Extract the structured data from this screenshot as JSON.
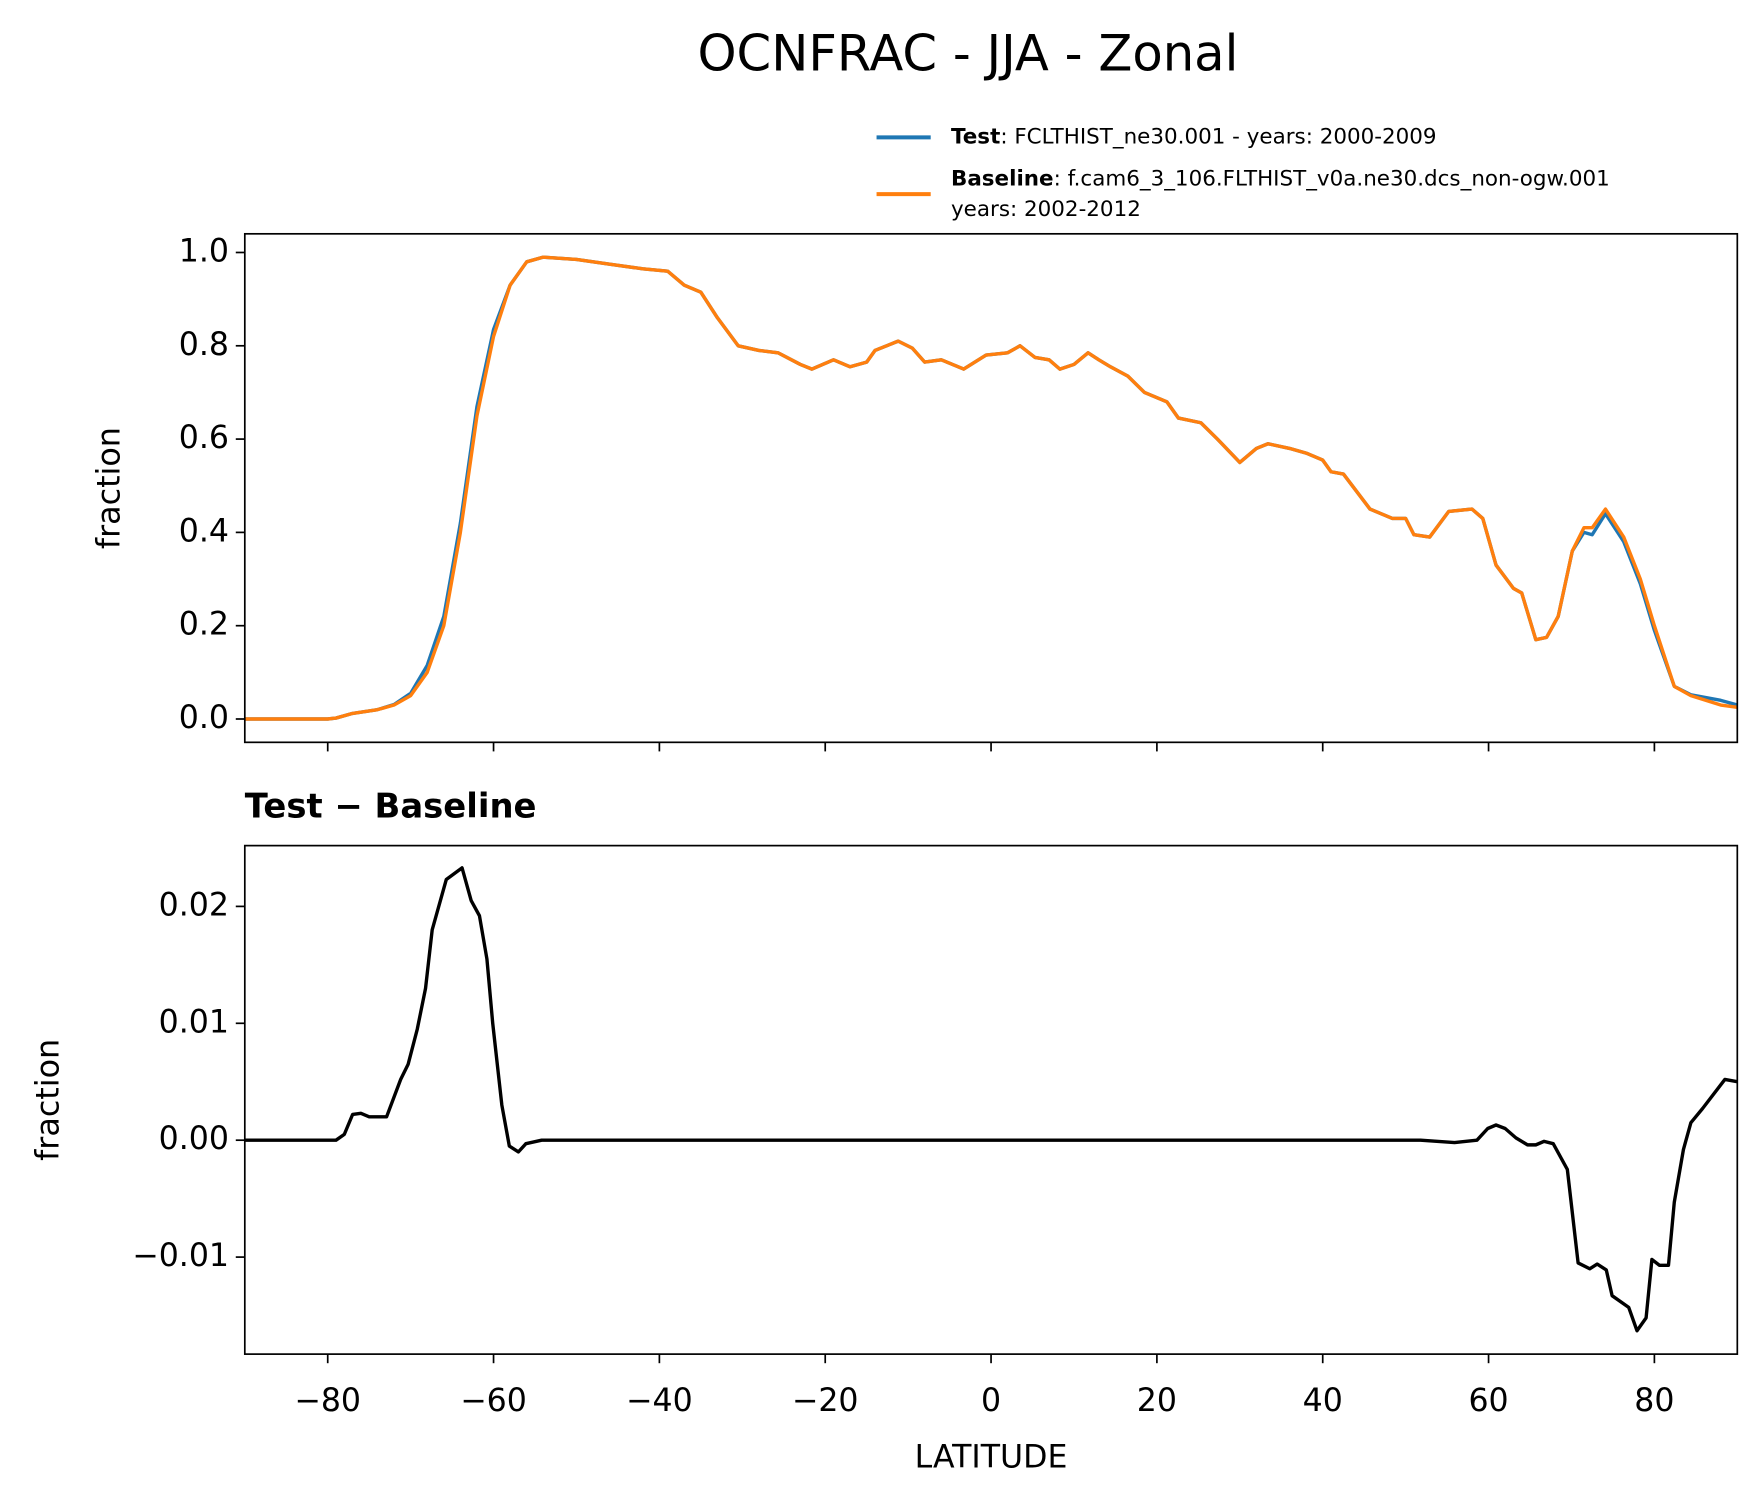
{
  "chart_data": [
    {
      "type": "line",
      "title": "OCNFRAC - JJA - Zonal",
      "ylabel": "fraction",
      "x": [
        -90,
        -80,
        -79,
        -77,
        -74,
        -72,
        -70,
        -68,
        -66,
        -64,
        -62,
        -60,
        -58,
        -56,
        -54,
        -50,
        -46,
        -42,
        -39,
        -37,
        -35,
        -33,
        -30.5,
        -28,
        -25.7,
        -23,
        -21.6,
        -19,
        -17,
        -15,
        -14,
        -11.2,
        -9.5,
        -8,
        -6,
        -3.3,
        -0.6,
        2,
        3.5,
        5.3,
        7,
        8.3,
        10,
        11.7,
        13,
        14.4,
        16.5,
        18.5,
        21.2,
        22.6,
        25.3,
        27.3,
        30,
        32,
        33.4,
        36,
        38,
        40,
        41,
        42.5,
        45.7,
        48.4,
        50,
        51,
        52.9,
        55.2,
        58,
        59.3,
        60.9,
        63,
        64,
        65.7,
        67,
        68.4,
        70.1,
        71.5,
        72.5,
        74.1,
        76.3,
        78.3,
        80,
        82.4,
        84.4,
        88,
        90
      ],
      "series": [
        {
          "name": "Test",
          "description": ": FCLTHIST_ne30.001 - years: 2000-2009",
          "color": "#1f77b4",
          "values": [
            0,
            0,
            0.002,
            0.012,
            0.02,
            0.031,
            0.055,
            0.115,
            0.22,
            0.42,
            0.67,
            0.835,
            0.93,
            0.98,
            0.99,
            0.985,
            0.975,
            0.965,
            0.96,
            0.93,
            0.915,
            0.86,
            0.8,
            0.79,
            0.785,
            0.76,
            0.75,
            0.77,
            0.755,
            0.765,
            0.79,
            0.81,
            0.795,
            0.765,
            0.77,
            0.75,
            0.78,
            0.785,
            0.8,
            0.775,
            0.77,
            0.75,
            0.76,
            0.785,
            0.77,
            0.755,
            0.735,
            0.7,
            0.68,
            0.645,
            0.635,
            0.6,
            0.55,
            0.58,
            0.59,
            0.58,
            0.57,
            0.555,
            0.53,
            0.525,
            0.45,
            0.43,
            0.43,
            0.395,
            0.39,
            0.445,
            0.45,
            0.43,
            0.33,
            0.28,
            0.27,
            0.17,
            0.175,
            0.22,
            0.36,
            0.4,
            0.395,
            0.44,
            0.38,
            0.29,
            0.19,
            0.07,
            0.052,
            0.04,
            0.03
          ]
        },
        {
          "name": "Baseline",
          "description": ": f.cam6_3_106.FLTHIST_v0a.ne30.dcs_non-ogw.001",
          "description_2": "years: 2002-2012",
          "color": "#ff7f0e",
          "values": [
            0,
            0,
            0.002,
            0.012,
            0.02,
            0.03,
            0.05,
            0.1,
            0.2,
            0.4,
            0.65,
            0.82,
            0.93,
            0.98,
            0.99,
            0.985,
            0.975,
            0.965,
            0.96,
            0.93,
            0.915,
            0.86,
            0.8,
            0.79,
            0.785,
            0.76,
            0.75,
            0.77,
            0.755,
            0.765,
            0.79,
            0.81,
            0.795,
            0.765,
            0.77,
            0.75,
            0.78,
            0.785,
            0.8,
            0.775,
            0.77,
            0.75,
            0.76,
            0.785,
            0.77,
            0.755,
            0.735,
            0.7,
            0.68,
            0.645,
            0.635,
            0.6,
            0.55,
            0.58,
            0.59,
            0.58,
            0.57,
            0.555,
            0.53,
            0.525,
            0.45,
            0.43,
            0.43,
            0.395,
            0.39,
            0.445,
            0.45,
            0.43,
            0.33,
            0.28,
            0.27,
            0.17,
            0.175,
            0.22,
            0.36,
            0.41,
            0.41,
            0.45,
            0.39,
            0.3,
            0.2,
            0.07,
            0.05,
            0.03,
            0.025
          ]
        }
      ],
      "xlim": [
        -90,
        90
      ],
      "xticks": [
        -80,
        -60,
        -40,
        -20,
        0,
        20,
        40,
        60,
        80
      ],
      "show_xtick_labels": false,
      "ylim": [
        -0.05,
        1.04
      ],
      "yticks": [
        {
          "value": 0,
          "label": "0.0"
        },
        0.2,
        0.4,
        0.6,
        0.8,
        {
          "value": 1,
          "label": "1.0"
        }
      ]
    },
    {
      "type": "line",
      "title": "Test − Baseline",
      "ylabel": "fraction",
      "xlabel": "LATITUDE",
      "x": [
        -90,
        -79,
        -78,
        -77,
        -76,
        -75,
        -72.9,
        -71.2,
        -70.3,
        -69.2,
        -68.2,
        -67.4,
        -65.7,
        -63.8,
        -62.7,
        -61.7,
        -60.8,
        -60.1,
        -59,
        -58.1,
        -57,
        -56.1,
        -54.2,
        51.8,
        55.9,
        58.6,
        59.9,
        60.9,
        62,
        63.3,
        64.7,
        65.7,
        66.7,
        67.8,
        69.5,
        70.8,
        72.2,
        73.1,
        74.2,
        74.9,
        76.9,
        77.9,
        79,
        79.7,
        80.6,
        81.7,
        82.4,
        83.5,
        84.4,
        85.8,
        88.5,
        90
      ],
      "series": [
        {
          "color": "#000000",
          "values": [
            0,
            0,
            0.0005,
            0.0022,
            0.0023,
            0.002,
            0.002,
            0.0052,
            0.0065,
            0.0095,
            0.013,
            0.018,
            0.0223,
            0.0233,
            0.0205,
            0.0192,
            0.0155,
            0.01,
            0.003,
            -0.0005,
            -0.001,
            -0.0003,
            0,
            0,
            -0.0002,
            0,
            0.001,
            0.0013,
            0.001,
            0.0002,
            -0.0004,
            -0.0004,
            -0.0001,
            -0.0003,
            -0.0025,
            -0.0105,
            -0.011,
            -0.0106,
            -0.0111,
            -0.0133,
            -0.0143,
            -0.0163,
            -0.0152,
            -0.0102,
            -0.0107,
            -0.0107,
            -0.0053,
            -0.0008,
            0.0015,
            0.0027,
            0.0052,
            0.005
          ]
        }
      ],
      "xlim": [
        -90,
        90
      ],
      "xticks": [
        {
          "value": -80,
          "label": "−80"
        },
        {
          "value": -60,
          "label": "−60"
        },
        {
          "value": -40,
          "label": "−40"
        },
        {
          "value": -20,
          "label": "−20"
        },
        0,
        20,
        40,
        60,
        80
      ],
      "show_xtick_labels": true,
      "ylim": [
        -0.0183,
        0.0252
      ],
      "yticks": [
        {
          "value": -0.01,
          "label": "−0.01"
        },
        {
          "value": 0,
          "label": "0.00"
        },
        0.01,
        0.02
      ]
    }
  ]
}
